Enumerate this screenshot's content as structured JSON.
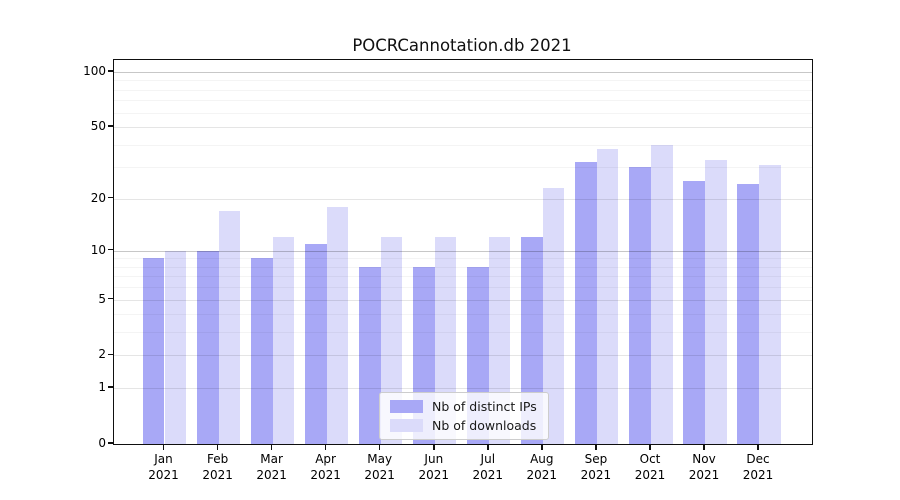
{
  "title": "POCRCannotation.db 2021",
  "legend": {
    "ips_label": "Nb of distinct IPs",
    "downloads_label": "Nb of downloads"
  },
  "colors": {
    "ips_bar": "#a8a8f6",
    "downloads_bar": "#dbdbfa",
    "grid_major_strong": "rgba(0,0,0,0.22)",
    "grid_major": "rgba(0,0,0,0.10)",
    "grid_minor": "rgba(0,0,0,0.045)"
  },
  "chart_data": {
    "type": "bar",
    "title": "POCRCannotation.db 2021",
    "xlabel": "",
    "ylabel": "",
    "yscale": "log1p",
    "ylim": [
      0,
      116
    ],
    "grid": true,
    "legend_position": "lower center",
    "year": "2021",
    "categories": [
      "Jan",
      "Feb",
      "Mar",
      "Apr",
      "May",
      "Jun",
      "Jul",
      "Aug",
      "Sep",
      "Oct",
      "Nov",
      "Dec"
    ],
    "series": [
      {
        "name": "Nb of distinct IPs",
        "color": "#a8a8f6",
        "values": [
          9,
          10,
          9,
          11,
          8,
          8,
          8,
          12,
          32,
          30,
          25,
          24
        ]
      },
      {
        "name": "Nb of downloads",
        "color": "#dbdbfa",
        "values": [
          10,
          17,
          12,
          18,
          12,
          12,
          12,
          23,
          38,
          40,
          33,
          31
        ]
      }
    ],
    "y_major_ticks": [
      {
        "v": 0,
        "label": "0"
      },
      {
        "v": 1,
        "label": "1"
      },
      {
        "v": 2,
        "label": "2"
      },
      {
        "v": 5,
        "label": "5"
      },
      {
        "v": 10,
        "label": "10"
      },
      {
        "v": 20,
        "label": "20"
      },
      {
        "v": 50,
        "label": "50"
      },
      {
        "v": 100,
        "label": "100"
      }
    ],
    "y_minor_ticks": [
      3,
      4,
      6,
      7,
      8,
      9,
      30,
      40,
      60,
      70,
      80,
      90
    ],
    "y_strong_gridlines": [
      10,
      100
    ]
  }
}
